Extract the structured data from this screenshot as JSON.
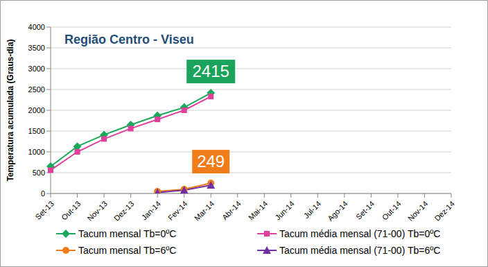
{
  "chart_data": {
    "type": "line",
    "title": "Região Centro - Viseu",
    "y_label": "Temperatura acumulada (Graus-dia)",
    "categories": [
      "Set-13",
      "Out-13",
      "Nov-13",
      "Dez-13",
      "Jan-14",
      "Fev-14",
      "Mar-14",
      "Abr-14",
      "Mai-14",
      "Jun-14",
      "Jul-14",
      "Ago-14",
      "Set-14",
      "Out-14",
      "Nov-14",
      "Dez-14"
    ],
    "series": [
      {
        "name": "Tacum mensal Tb=0ºC",
        "color": "#1aa85a",
        "marker": "diamond",
        "values": [
          650,
          1130,
          1410,
          1650,
          1870,
          2070,
          2415,
          null,
          null,
          null,
          null,
          null,
          null,
          null,
          null,
          null
        ]
      },
      {
        "name": "Tacum média mensal (71-00) Tb=0ºC",
        "color": "#e0409c",
        "marker": "square",
        "values": [
          560,
          1000,
          1310,
          1560,
          1780,
          2000,
          2330,
          null,
          null,
          null,
          null,
          null,
          null,
          null,
          null,
          null
        ]
      },
      {
        "name": "Tacum mensal Tb=6ºC",
        "color": "#f07d1a",
        "marker": "circle",
        "values": [
          null,
          null,
          null,
          null,
          50,
          100,
          249,
          null,
          null,
          null,
          null,
          null,
          null,
          null,
          null,
          null
        ]
      },
      {
        "name": "Tacum média mensal (71-00) Tb=6ºC",
        "color": "#7030a0",
        "marker": "triangle",
        "values": [
          null,
          null,
          null,
          null,
          20,
          80,
          200,
          null,
          null,
          null,
          null,
          null,
          null,
          null,
          null,
          null
        ]
      }
    ],
    "ylim": [
      0,
      4000
    ],
    "yticks": [
      0,
      500,
      1000,
      1500,
      2000,
      2500,
      3000,
      3500,
      4000
    ],
    "grid": true,
    "legend": "bottom",
    "annotations": [
      {
        "text": "2415",
        "x": "Mar-14",
        "y": 2415,
        "color": "#1aa35a"
      },
      {
        "text": "249",
        "x": "Mar-14",
        "y": 249,
        "color": "#f07d1a"
      }
    ]
  }
}
